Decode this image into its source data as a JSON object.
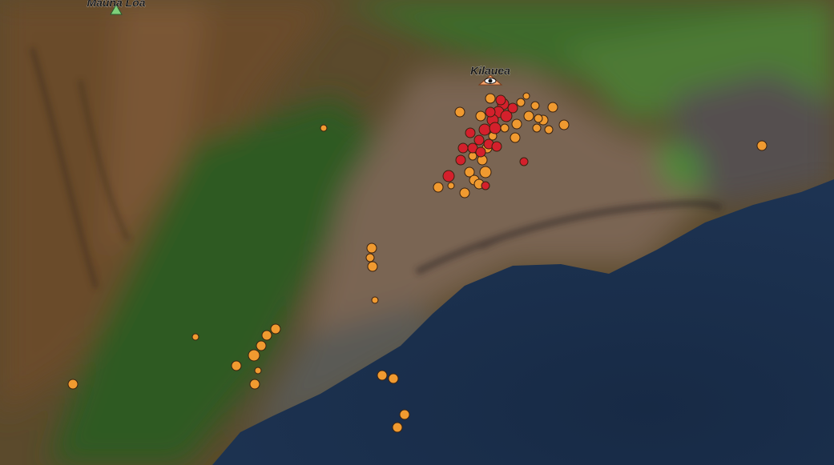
{
  "labels": {
    "mauna_loa": "Mauna Loa",
    "kilauea": "Kilauea"
  }
}
